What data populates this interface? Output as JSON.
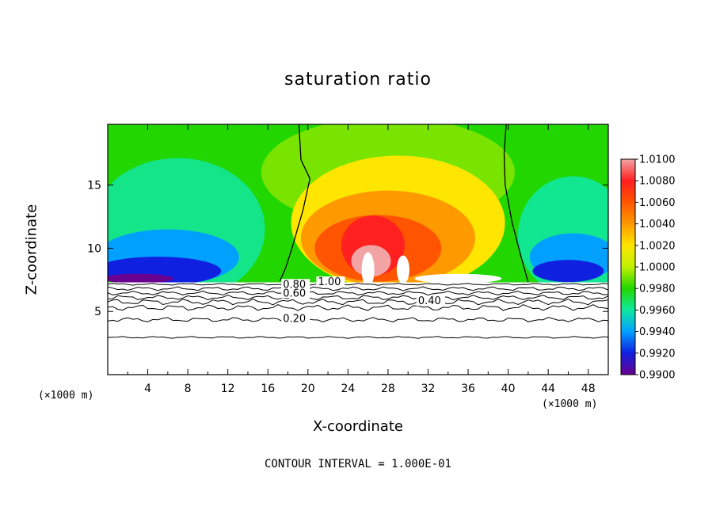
{
  "chart_data": {
    "type": "heatmap",
    "title": "saturation ratio",
    "xlabel": "X-coordinate",
    "ylabel": "Z-coordinate",
    "x_unit": "(×1000 m)",
    "xlim": [
      0,
      50
    ],
    "ylim": [
      0,
      19.8
    ],
    "x_ticks": [
      4,
      8,
      12,
      16,
      20,
      24,
      28,
      32,
      36,
      40,
      44,
      48
    ],
    "y_ticks": [
      5,
      10,
      15
    ],
    "colorbar": {
      "levels": [
        "1.0100",
        "1.0080",
        "1.0060",
        "1.0040",
        "1.0020",
        "1.0000",
        "0.9980",
        "0.9960",
        "0.9940",
        "0.9920",
        "0.9900"
      ],
      "colors_top_to_bottom": [
        "#f2a3a3",
        "#ff2020",
        "#ff5500",
        "#ff9900",
        "#ffe600",
        "#bff000",
        "#22d600",
        "#10e8a0",
        "#00a0ff",
        "#1020e0",
        "#6a0090"
      ]
    },
    "contour_labels": [
      {
        "text": "1.00",
        "x": 21,
        "z": 7.2
      },
      {
        "text": "0.80",
        "x": 17.5,
        "z": 7.0
      },
      {
        "text": "0.60",
        "x": 17.5,
        "z": 6.3
      },
      {
        "text": "0.40",
        "x": 31,
        "z": 5.7
      },
      {
        "text": "0.20",
        "x": 17.5,
        "z": 4.3
      }
    ],
    "contour_lines": [
      {
        "z": 7.15,
        "dz": 0.05
      },
      {
        "z": 6.8,
        "dz": 0.1
      },
      {
        "z": 6.45,
        "dz": 0.1
      },
      {
        "z": 6.1,
        "dz": 0.12
      },
      {
        "z": 5.75,
        "dz": 0.15
      },
      {
        "z": 5.3,
        "dz": 0.15
      },
      {
        "z": 4.35,
        "dz": 0.12
      },
      {
        "z": 2.95,
        "dz": 0.05
      }
    ],
    "boundary_lines": [
      {
        "points": [
          [
            19.1,
            19.8
          ],
          [
            19.3,
            17
          ],
          [
            20.2,
            15.5
          ],
          [
            19.5,
            13
          ],
          [
            18.4,
            10
          ],
          [
            17.8,
            8.5
          ],
          [
            17.2,
            7.4
          ]
        ]
      },
      {
        "points": [
          [
            39.8,
            19.8
          ],
          [
            39.6,
            17.5
          ],
          [
            39.7,
            15
          ],
          [
            40.4,
            12
          ],
          [
            41.4,
            9
          ],
          [
            42.0,
            7.3
          ]
        ]
      }
    ],
    "contour_interval_note": "CONTOUR INTERVAL = 1.000E-01"
  }
}
